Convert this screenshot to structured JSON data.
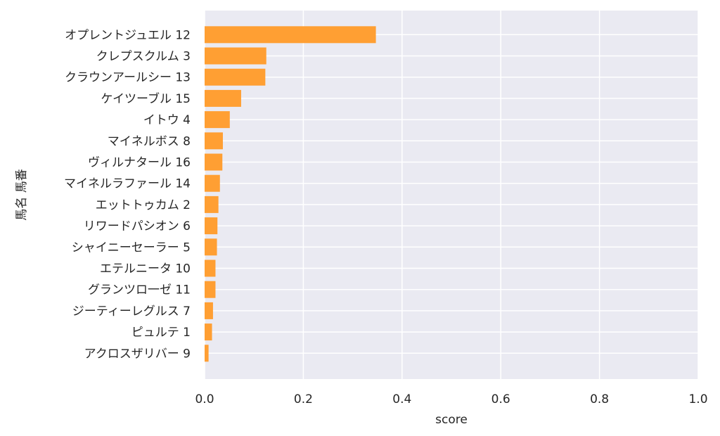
{
  "chart_data": {
    "type": "bar",
    "orientation": "horizontal",
    "categories": [
      "オプレントジュエル 12",
      "クレプスクルム 3",
      "クラウンアールシー 13",
      "ケイツーブル 15",
      "イトウ 4",
      "マイネルボス 8",
      "ヴィルナタール 16",
      "マイネルラファール 14",
      "エットトゥカム 2",
      "リワードパシオン 6",
      "シャイニーセーラー 5",
      "エテルニータ 10",
      "グランツロ一ゼ 11",
      "ジーティーレグルス 7",
      "ピュルテ 1",
      "アクロスザリバー 9"
    ],
    "values": [
      0.347,
      0.125,
      0.123,
      0.074,
      0.051,
      0.037,
      0.036,
      0.031,
      0.028,
      0.026,
      0.025,
      0.022,
      0.022,
      0.017,
      0.015,
      0.008
    ],
    "xlabel": "score",
    "ylabel": "馬名 馬番",
    "xlim": [
      0,
      1.0
    ],
    "xticks": [
      "0.0",
      "0.2",
      "0.4",
      "0.6",
      "0.8",
      "1.0"
    ],
    "xtick_values": [
      0,
      0.2,
      0.4,
      0.6,
      0.8,
      1.0
    ],
    "grid": true,
    "bar_color": "#ff9f33",
    "background_color": "#eaeaf2",
    "grid_color": "#ffffff"
  }
}
